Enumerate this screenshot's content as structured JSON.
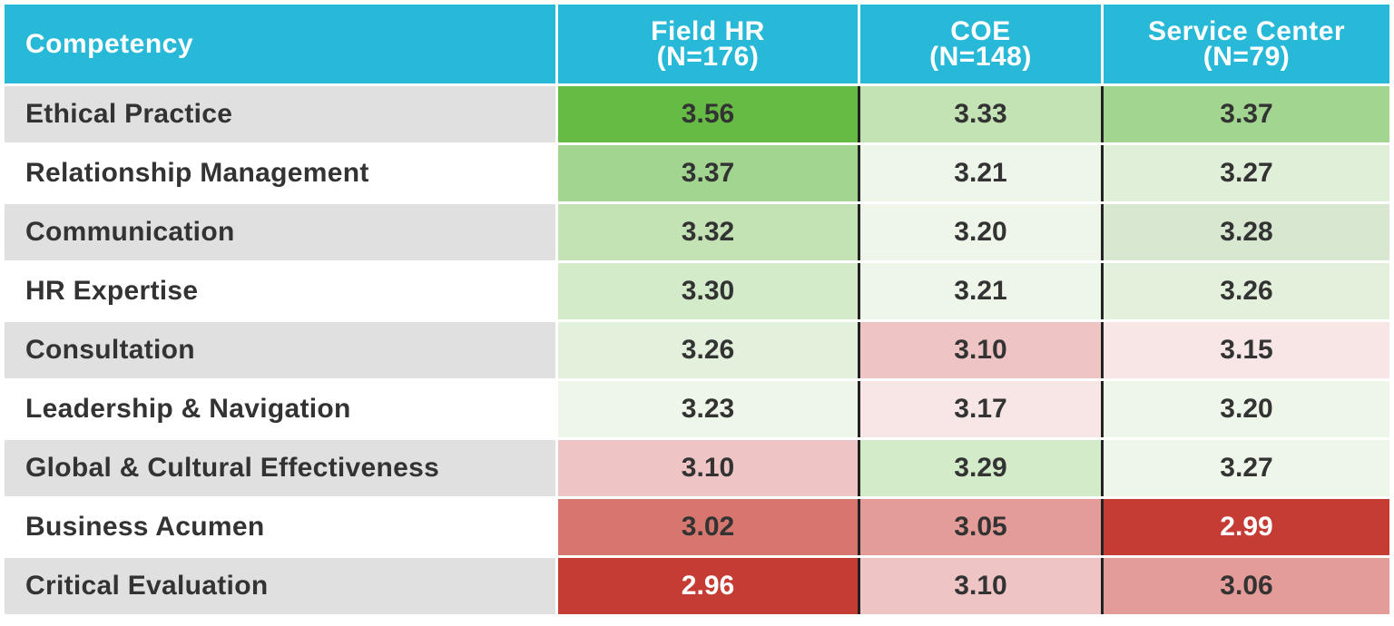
{
  "table": {
    "columns": [
      {
        "title": "Competency"
      },
      {
        "title": "Field HR",
        "n": "(N=176)"
      },
      {
        "title": "COE",
        "n": "(N=148)"
      },
      {
        "title": "Service Center",
        "n": "(N=79)"
      }
    ],
    "rows": [
      {
        "competency": "Ethical Practice",
        "values": [
          "3.56",
          "3.33",
          "3.37"
        ],
        "colors": [
          "#66bb44",
          "#c3e3b5",
          "#a2d690"
        ]
      },
      {
        "competency": "Relationship Management",
        "values": [
          "3.37",
          "3.21",
          "3.27"
        ],
        "colors": [
          "#a2d690",
          "#eef6ea",
          "#e0efd8"
        ]
      },
      {
        "competency": "Communication",
        "values": [
          "3.32",
          "3.20",
          "3.28"
        ],
        "colors": [
          "#c3e3b5",
          "#eef6ea",
          "#d8e8d0"
        ]
      },
      {
        "competency": "HR Expertise",
        "values": [
          "3.30",
          "3.21",
          "3.26"
        ],
        "colors": [
          "#d3ebc9",
          "#eef6ea",
          "#e3f1dc"
        ]
      },
      {
        "competency": "Consultation",
        "values": [
          "3.26",
          "3.10",
          "3.15"
        ],
        "colors": [
          "#e3f1dc",
          "#efc4c4",
          "#f8e6e7"
        ]
      },
      {
        "competency": "Leadership & Navigation",
        "values": [
          "3.23",
          "3.17",
          "3.20"
        ],
        "colors": [
          "#eef6ea",
          "#f8e6e7",
          "#eef6ea"
        ]
      },
      {
        "competency": "Global & Cultural Effectiveness",
        "values": [
          "3.10",
          "3.29",
          "3.27"
        ],
        "colors": [
          "#efc4c4",
          "#d3ebc9",
          "#eef6ea"
        ]
      },
      {
        "competency": "Business Acumen",
        "values": [
          "3.02",
          "3.05",
          "2.99"
        ],
        "colors": [
          "#d6766e",
          "#e49c98",
          "#c43c33"
        ]
      },
      {
        "competency": "Critical Evaluation",
        "values": [
          "2.96",
          "3.10",
          "3.06"
        ],
        "colors": [
          "#c43c33",
          "#efc4c4",
          "#e49c98"
        ]
      }
    ]
  }
}
